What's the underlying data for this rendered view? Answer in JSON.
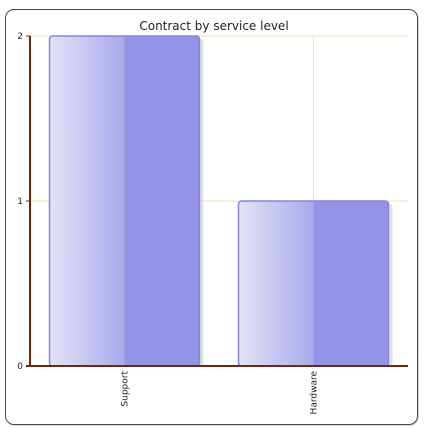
{
  "chart_data": {
    "type": "bar",
    "title": "Contract by service level",
    "categories": [
      "Support",
      "Hardware"
    ],
    "values": [
      2,
      1
    ],
    "ylim": [
      0,
      2
    ],
    "yticks": [
      0,
      1,
      2
    ],
    "xlabel": "",
    "ylabel": "",
    "grid": true,
    "legend": "none",
    "colors": {
      "bar_fill": "#9393e8",
      "bar_fill_light": "#e3e3f7",
      "bar_stroke": "#8585dc",
      "axis": "#6b2a0a",
      "grid": "#f0e2b0"
    }
  }
}
